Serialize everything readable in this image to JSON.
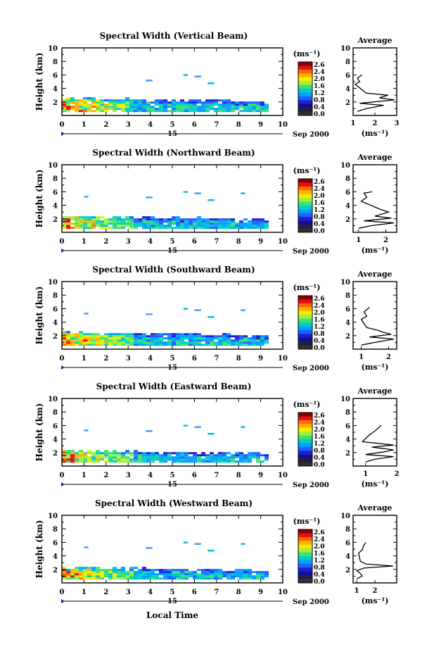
{
  "figure": {
    "xlabel_bottom": "Local Time",
    "date_label": "Sep 2000",
    "day_label": "15",
    "unit_label": "(ms⁻¹)",
    "colorbar_ticks": [
      "2.6",
      "2.4",
      "2.0",
      "1.6",
      "1.2",
      "0.8",
      "0.4",
      "0.0"
    ],
    "colorbar_colors": [
      "#8b0000",
      "#e01010",
      "#ff6a00",
      "#ffb000",
      "#f0f000",
      "#a0f040",
      "#40e070",
      "#00d0c0",
      "#00a0ff",
      "#2060ff",
      "#2020d0",
      "#101090",
      "#202040",
      "#303030"
    ]
  },
  "chart_data": [
    {
      "type": "heatmap",
      "title": "Spectral Width (Vertical Beam)",
      "xlabel": "",
      "ylabel": "Height (km)",
      "xlim": [
        0,
        10
      ],
      "ylim": [
        0,
        10
      ],
      "x_ticks": [
        "0",
        "1",
        "2",
        "3",
        "4",
        "5",
        "6",
        "7",
        "8",
        "9",
        "10"
      ],
      "y_ticks": [
        "2",
        "4",
        "6",
        "8",
        "10"
      ],
      "z_range": [
        0.0,
        2.6
      ],
      "data_extent": {
        "time_end": 9.3,
        "top_height": 2.4
      },
      "avg_profile": {
        "title": "Average",
        "xlim": [
          1,
          3
        ],
        "x_ticks": [
          "1",
          "2",
          "3"
        ],
        "xlabel": "(ms⁻¹)",
        "points": [
          [
            1.2,
            0.6
          ],
          [
            1.6,
            1.0
          ],
          [
            2.4,
            1.5
          ],
          [
            1.3,
            1.8
          ],
          [
            2.9,
            2.3
          ],
          [
            2.2,
            2.6
          ],
          [
            2.6,
            3.0
          ],
          [
            1.6,
            3.3
          ],
          [
            1.1,
            4.6
          ],
          [
            1.3,
            5.0
          ],
          [
            1.2,
            5.5
          ],
          [
            1.4,
            6.0
          ]
        ]
      }
    },
    {
      "type": "heatmap",
      "title": "Spectral Width (Northward Beam)",
      "xlabel": "",
      "ylabel": "Height (km)",
      "xlim": [
        0,
        10
      ],
      "ylim": [
        0,
        10
      ],
      "x_ticks": [
        "0",
        "1",
        "2",
        "3",
        "4",
        "5",
        "6",
        "7",
        "8",
        "9",
        "10"
      ],
      "y_ticks": [
        "2",
        "4",
        "6",
        "8",
        "10"
      ],
      "z_range": [
        0.0,
        2.6
      ],
      "data_extent": {
        "time_end": 9.3,
        "top_height": 2.3
      },
      "avg_profile": {
        "title": "Average",
        "xlim": [
          0.8,
          2.4
        ],
        "x_ticks": [
          "1",
          "2"
        ],
        "xlabel": "(ms⁻¹)",
        "points": [
          [
            1.0,
            0.6
          ],
          [
            1.5,
            1.0
          ],
          [
            2.3,
            1.4
          ],
          [
            1.2,
            1.7
          ],
          [
            2.2,
            2.1
          ],
          [
            1.6,
            2.4
          ],
          [
            2.1,
            3.0
          ],
          [
            1.8,
            3.4
          ],
          [
            1.1,
            4.6
          ],
          [
            1.3,
            5.2
          ],
          [
            1.2,
            5.8
          ],
          [
            1.5,
            6.0
          ]
        ]
      }
    },
    {
      "type": "heatmap",
      "title": "Spectral Width (Southward Beam)",
      "xlabel": "",
      "ylabel": "Height (km)",
      "xlim": [
        0,
        10
      ],
      "ylim": [
        0,
        10
      ],
      "x_ticks": [
        "0",
        "1",
        "2",
        "3",
        "4",
        "5",
        "6",
        "7",
        "8",
        "9",
        "10"
      ],
      "y_ticks": [
        "2",
        "4",
        "6",
        "8",
        "10"
      ],
      "z_range": [
        0.0,
        2.6
      ],
      "data_extent": {
        "time_end": 9.3,
        "top_height": 2.4
      },
      "avg_profile": {
        "title": "Average",
        "xlim": [
          0.7,
          2.3
        ],
        "x_ticks": [
          "1",
          "2"
        ],
        "xlabel": "(ms⁻¹)",
        "points": [
          [
            1.0,
            0.6
          ],
          [
            1.5,
            1.0
          ],
          [
            2.2,
            1.5
          ],
          [
            1.3,
            1.8
          ],
          [
            2.1,
            2.2
          ],
          [
            1.8,
            2.5
          ],
          [
            1.6,
            2.8
          ],
          [
            1.2,
            3.2
          ],
          [
            1.0,
            4.4
          ],
          [
            1.2,
            4.9
          ],
          [
            1.1,
            5.5
          ],
          [
            1.3,
            6.2
          ]
        ]
      }
    },
    {
      "type": "heatmap",
      "title": "Spectral Width (Eastward Beam)",
      "xlabel": "",
      "ylabel": "Height (km)",
      "xlim": [
        0,
        10
      ],
      "ylim": [
        0,
        10
      ],
      "x_ticks": [
        "0",
        "1",
        "2",
        "3",
        "4",
        "5",
        "6",
        "7",
        "8",
        "9",
        "10"
      ],
      "y_ticks": [
        "2",
        "4",
        "6",
        "8",
        "10"
      ],
      "z_range": [
        0.0,
        2.6
      ],
      "data_extent": {
        "time_end": 9.3,
        "top_height": 2.2
      },
      "avg_profile": {
        "title": "Average",
        "xlim": [
          0.6,
          2.0
        ],
        "x_ticks": [
          "1",
          "2"
        ],
        "xlabel": "(ms⁻¹)",
        "points": [
          [
            1.0,
            0.6
          ],
          [
            1.3,
            1.0
          ],
          [
            1.9,
            1.4
          ],
          [
            1.0,
            1.7
          ],
          [
            1.6,
            2.1
          ],
          [
            1.9,
            2.4
          ],
          [
            1.2,
            2.8
          ],
          [
            1.9,
            3.1
          ],
          [
            0.9,
            3.6
          ],
          [
            1.1,
            4.5
          ],
          [
            1.3,
            5.2
          ],
          [
            1.5,
            6.0
          ]
        ]
      }
    },
    {
      "type": "heatmap",
      "title": "Spectral Width (Westward Beam)",
      "xlabel": "Local Time",
      "ylabel": "Height (km)",
      "xlim": [
        0,
        10
      ],
      "ylim": [
        0,
        10
      ],
      "x_ticks": [
        "0",
        "1",
        "2",
        "3",
        "4",
        "5",
        "6",
        "7",
        "8",
        "9",
        "10"
      ],
      "y_ticks": [
        "2",
        "4",
        "6",
        "8",
        "10"
      ],
      "z_range": [
        0.0,
        2.6
      ],
      "data_extent": {
        "time_end": 9.3,
        "top_height": 2.2
      },
      "avg_profile": {
        "title": "Average",
        "xlim": [
          0.8,
          3.2
        ],
        "x_ticks": [
          "1",
          "2"
        ],
        "xlabel": "(ms⁻¹)",
        "points": [
          [
            1.0,
            0.6
          ],
          [
            1.3,
            1.0
          ],
          [
            1.2,
            1.4
          ],
          [
            1.0,
            1.8
          ],
          [
            1.4,
            2.2
          ],
          [
            3.0,
            2.5
          ],
          [
            1.5,
            2.8
          ],
          [
            1.2,
            3.2
          ],
          [
            1.1,
            4.4
          ],
          [
            1.3,
            4.9
          ],
          [
            1.4,
            5.6
          ],
          [
            1.5,
            6.0
          ]
        ]
      }
    }
  ]
}
